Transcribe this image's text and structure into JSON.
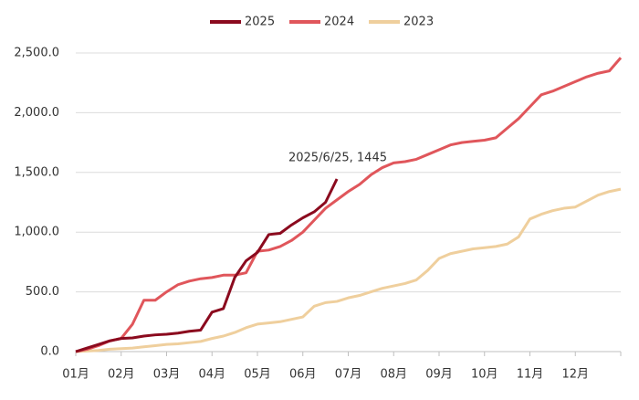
{
  "chart_data": {
    "type": "line",
    "annotation": "2025/6/25, 1445",
    "categories": [
      "01月",
      null,
      null,
      null,
      "02月",
      null,
      null,
      null,
      "03月",
      null,
      null,
      null,
      "04月",
      null,
      null,
      null,
      "05月",
      null,
      null,
      null,
      "06月",
      null,
      null,
      null,
      "07月",
      null,
      null,
      null,
      "08月",
      null,
      null,
      null,
      "09月",
      null,
      null,
      null,
      "10月",
      null,
      null,
      null,
      "11月",
      null,
      null,
      null,
      "12月",
      null,
      null,
      null,
      null
    ],
    "series": [
      {
        "name": "2025",
        "color": "#8b0a1e",
        "values": [
          0,
          30,
          60,
          90,
          110,
          115,
          130,
          140,
          145,
          155,
          170,
          180,
          330,
          360,
          620,
          760,
          830,
          980,
          990,
          1060,
          1120,
          1170,
          1250,
          1445,
          null,
          null,
          null,
          null,
          null,
          null,
          null,
          null,
          null,
          null,
          null,
          null,
          null,
          null,
          null,
          null,
          null,
          null,
          null,
          null,
          null,
          null,
          null,
          null,
          null
        ]
      },
      {
        "name": "2024",
        "color": "#e0565b",
        "values": [
          0,
          20,
          50,
          90,
          110,
          230,
          430,
          430,
          500,
          560,
          590,
          610,
          620,
          640,
          640,
          660,
          840,
          850,
          880,
          930,
          1000,
          1100,
          1200,
          1270,
          1340,
          1400,
          1480,
          1540,
          1580,
          1590,
          1610,
          1650,
          1690,
          1730,
          1750,
          1760,
          1770,
          1790,
          1870,
          1950,
          2050,
          2150,
          2180,
          2220,
          2260,
          2300,
          2330,
          2350,
          2460
        ]
      },
      {
        "name": "2023",
        "color": "#efcf9d",
        "values": [
          0,
          5,
          10,
          20,
          25,
          30,
          40,
          50,
          60,
          65,
          75,
          85,
          110,
          130,
          160,
          200,
          230,
          240,
          250,
          270,
          290,
          380,
          410,
          420,
          450,
          470,
          500,
          530,
          550,
          570,
          600,
          680,
          780,
          820,
          840,
          860,
          870,
          880,
          900,
          960,
          1110,
          1150,
          1180,
          1200,
          1210,
          1260,
          1310,
          1340,
          1360
        ]
      }
    ],
    "ylim": [
      0,
      2500
    ],
    "yticks": [
      {
        "value": 0,
        "label": "0.0"
      },
      {
        "value": 500,
        "label": "500.0"
      },
      {
        "value": 1000,
        "label": "1,000.0"
      },
      {
        "value": 1500,
        "label": "1,500.0"
      },
      {
        "value": 2000,
        "label": "2,000.0"
      },
      {
        "value": 2500,
        "label": "2,500.0"
      }
    ],
    "grid": true
  }
}
